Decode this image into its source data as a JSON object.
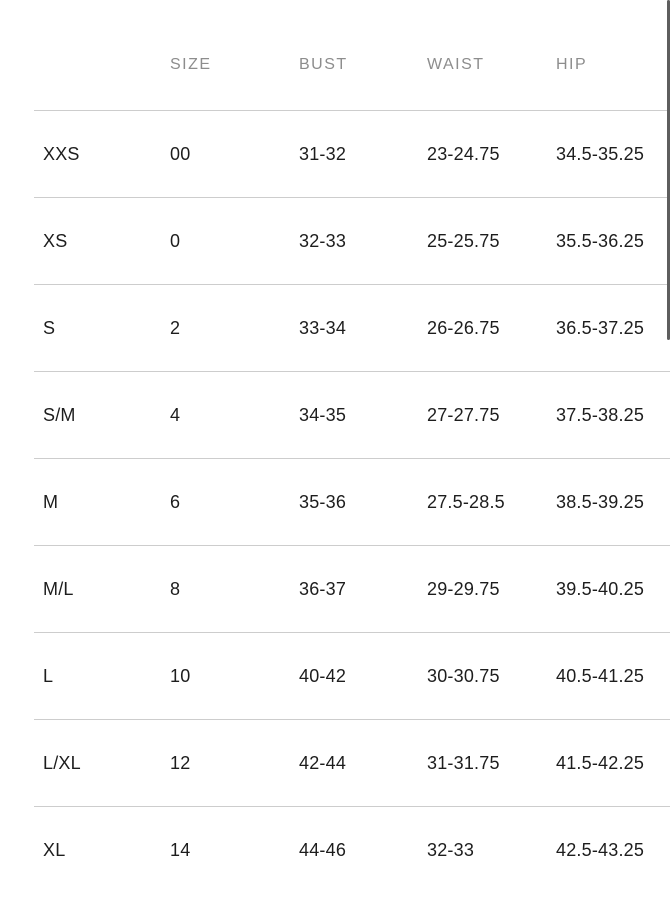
{
  "colors": {
    "background": "#ffffff",
    "cell_text": "#1d1d1d",
    "header_text": "#8d8d8d",
    "divider": "#cdcdcd",
    "scrollbar_thumb": "#5e5e5e"
  },
  "table": {
    "columns": [
      {
        "key": "label",
        "label": ""
      },
      {
        "key": "size",
        "label": "SIZE"
      },
      {
        "key": "bust",
        "label": "BUST"
      },
      {
        "key": "waist",
        "label": "WAIST"
      },
      {
        "key": "hip",
        "label": "HIP"
      }
    ],
    "rows": [
      {
        "label": "XXS",
        "size": "00",
        "bust": "31-32",
        "waist": "23-24.75",
        "hip": "34.5-35.25"
      },
      {
        "label": "XS",
        "size": "0",
        "bust": "32-33",
        "waist": "25-25.75",
        "hip": "35.5-36.25"
      },
      {
        "label": "S",
        "size": "2",
        "bust": "33-34",
        "waist": "26-26.75",
        "hip": "36.5-37.25"
      },
      {
        "label": "S/M",
        "size": "4",
        "bust": "34-35",
        "waist": "27-27.75",
        "hip": "37.5-38.25"
      },
      {
        "label": "M",
        "size": "6",
        "bust": "35-36",
        "waist": "27.5-28.5",
        "hip": "38.5-39.25"
      },
      {
        "label": "M/L",
        "size": "8",
        "bust": "36-37",
        "waist": "29-29.75",
        "hip": "39.5-40.25"
      },
      {
        "label": "L",
        "size": "10",
        "bust": "40-42",
        "waist": "30-30.75",
        "hip": "40.5-41.25"
      },
      {
        "label": "L/XL",
        "size": "12",
        "bust": "42-44",
        "waist": "31-31.75",
        "hip": "41.5-42.25"
      },
      {
        "label": "XL",
        "size": "14",
        "bust": "44-46",
        "waist": "32-33",
        "hip": "42.5-43.25"
      }
    ]
  }
}
